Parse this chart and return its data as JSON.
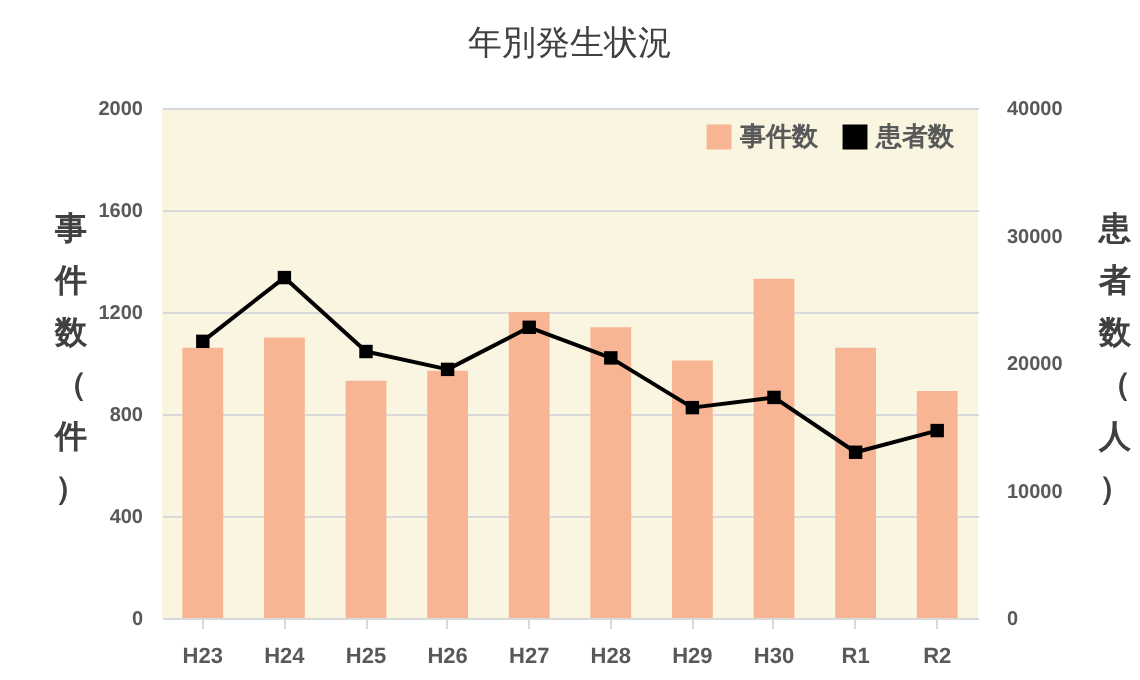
{
  "chart_data": {
    "type": "bar",
    "title": "年別発生状況",
    "categories": [
      "H23",
      "H24",
      "H25",
      "H26",
      "H27",
      "H28",
      "H29",
      "H30",
      "R1",
      "R2"
    ],
    "series": [
      {
        "name": "事件数",
        "color": "#f8b593",
        "values": [
          1060,
          1100,
          930,
          970,
          1200,
          1140,
          1010,
          1330,
          1060,
          890
        ]
      },
      {
        "name": "患者数",
        "type": "line",
        "axis": "y2",
        "color": "#000000",
        "values": [
          21700,
          26700,
          20900,
          19500,
          22800,
          20400,
          16500,
          17300,
          13000,
          14700
        ]
      }
    ],
    "ylabel": "事件数（件）",
    "y2label": "患者数（人）",
    "ylim": [
      0,
      2000
    ],
    "yticks": [
      0,
      400,
      800,
      1200,
      1600,
      2000
    ],
    "y2lim": [
      0,
      40000
    ],
    "y2ticks": [
      0,
      10000,
      20000,
      30000,
      40000
    ],
    "grid": "y",
    "legend": "top right",
    "marker": "square",
    "line_style": "solid"
  }
}
